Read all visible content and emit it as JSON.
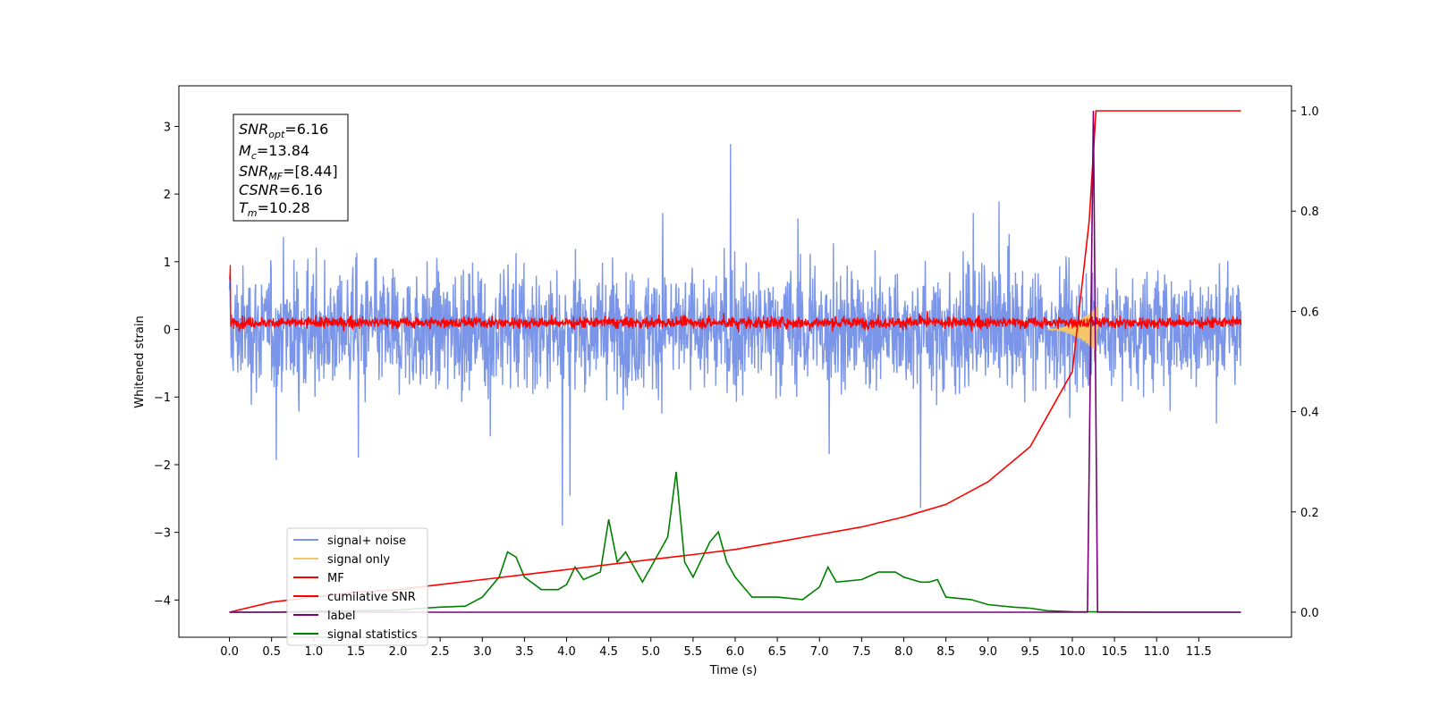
{
  "chart_data": {
    "type": "line",
    "xlabel": "Time (s)",
    "ylabel": "Whitened strain",
    "xlim": [
      -0.6,
      12.6
    ],
    "ylim": [
      -4.55,
      3.6
    ],
    "y2lim": [
      -0.05,
      1.05
    ],
    "xticks": [
      "0.0",
      "0.5",
      "1.0",
      "1.5",
      "2.0",
      "2.5",
      "3.0",
      "3.5",
      "4.0",
      "4.5",
      "5.0",
      "5.5",
      "6.0",
      "6.5",
      "7.0",
      "7.5",
      "8.0",
      "8.5",
      "9.0",
      "9.5",
      "10.0",
      "10.5",
      "11.0",
      "11.5"
    ],
    "yticks": [
      "3",
      "2",
      "1",
      "0",
      "−1",
      "−2",
      "−3",
      "−4"
    ],
    "y2ticks": [
      "1.0",
      "0.8",
      "0.6",
      "0.4",
      "0.2",
      "0.0"
    ],
    "colors": {
      "signal_noise": "#7b96e8",
      "signal_only": "#f5c56a",
      "mf": "#ff0000",
      "cumulative_snr": "#ff0000",
      "label": "#7a007a",
      "signal_statistics": "#008000"
    },
    "legend": {
      "position": "lower-left",
      "entries": [
        "signal+ noise",
        "signal only",
        "MF",
        "cumilative SNR",
        "label",
        "signal statistics"
      ]
    },
    "info_box": {
      "snr_opt": "=6.16",
      "mc": "=13.84",
      "snr_mf": "=[8.44]",
      "csnr": "=6.16",
      "tm": "=10.28"
    },
    "series": [
      {
        "name": "signal+ noise",
        "axis": "left",
        "description_range": [
          -2.9,
          3.3
        ],
        "x_range": [
          0.0,
          12.0
        ]
      },
      {
        "name": "signal only",
        "axis": "left",
        "x_range": [
          9.7,
          10.3
        ],
        "peak_amplitude": 0.35
      },
      {
        "name": "MF",
        "axis": "left",
        "x_range": [
          0.0,
          12.0
        ],
        "band": [
          -0.2,
          0.4
        ]
      },
      {
        "name": "cumilative SNR",
        "axis": "right",
        "x": [
          0.0,
          0.5,
          1.0,
          1.5,
          2.0,
          2.5,
          3.0,
          3.5,
          4.0,
          4.5,
          5.0,
          5.5,
          6.0,
          6.5,
          7.0,
          7.5,
          8.0,
          8.5,
          9.0,
          9.5,
          10.0,
          10.2,
          10.28,
          12.0
        ],
        "values": [
          0.0,
          0.02,
          0.03,
          0.04,
          0.045,
          0.055,
          0.065,
          0.075,
          0.085,
          0.095,
          0.105,
          0.115,
          0.125,
          0.14,
          0.155,
          0.17,
          0.19,
          0.215,
          0.26,
          0.33,
          0.48,
          0.78,
          1.0,
          1.0
        ]
      },
      {
        "name": "label",
        "axis": "right",
        "x": [
          0.0,
          10.18,
          10.25,
          10.3,
          12.0
        ],
        "values": [
          0.0,
          0.0,
          1.0,
          0.0,
          0.0
        ]
      },
      {
        "name": "signal statistics",
        "axis": "right",
        "x": [
          0.0,
          0.5,
          1.0,
          1.5,
          2.0,
          2.3,
          2.5,
          2.8,
          3.0,
          3.2,
          3.3,
          3.4,
          3.5,
          3.7,
          3.9,
          4.0,
          4.1,
          4.2,
          4.4,
          4.5,
          4.6,
          4.7,
          4.8,
          4.9,
          5.0,
          5.2,
          5.3,
          5.4,
          5.5,
          5.7,
          5.8,
          5.9,
          6.0,
          6.2,
          6.5,
          6.8,
          7.0,
          7.1,
          7.2,
          7.5,
          7.7,
          7.9,
          8.0,
          8.2,
          8.3,
          8.4,
          8.5,
          8.8,
          9.0,
          9.3,
          9.5,
          9.7,
          10.0,
          11.0,
          12.0
        ],
        "values": [
          0.0,
          0.0,
          0.002,
          0.003,
          0.004,
          0.008,
          0.01,
          0.012,
          0.03,
          0.07,
          0.12,
          0.11,
          0.07,
          0.045,
          0.045,
          0.055,
          0.09,
          0.065,
          0.08,
          0.185,
          0.1,
          0.12,
          0.09,
          0.06,
          0.09,
          0.15,
          0.28,
          0.1,
          0.07,
          0.14,
          0.16,
          0.1,
          0.07,
          0.03,
          0.03,
          0.025,
          0.05,
          0.09,
          0.06,
          0.065,
          0.08,
          0.08,
          0.07,
          0.06,
          0.06,
          0.065,
          0.03,
          0.025,
          0.015,
          0.01,
          0.008,
          0.003,
          0.001,
          0.0,
          0.0
        ]
      }
    ]
  }
}
